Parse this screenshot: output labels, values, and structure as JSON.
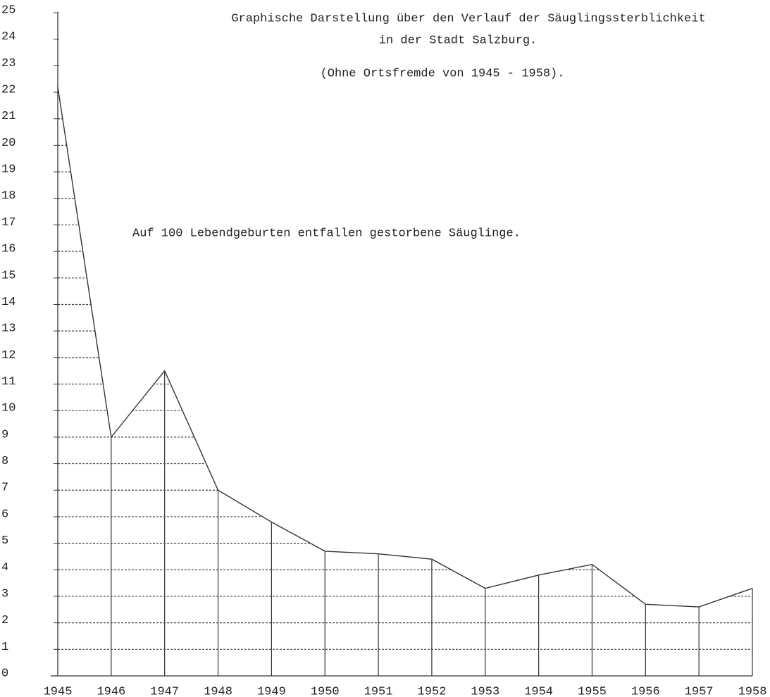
{
  "chart_data": {
    "type": "line",
    "title": "Graphische Darstellung über den Verlauf der Säuglingssterblichkeit",
    "subtitle": "in der Stadt Salzburg.",
    "note": "(Ohne Ortsfremde von 1945 - 1958).",
    "annotation": "Auf 100 Lebendgeburten entfallen gestorbene Säuglinge.",
    "categories": [
      "1945",
      "1946",
      "1947",
      "1948",
      "1949",
      "1950",
      "1951",
      "1952",
      "1953",
      "1954",
      "1955",
      "1956",
      "1957",
      "1958"
    ],
    "values": [
      22.2,
      9.0,
      11.5,
      7.0,
      5.8,
      4.7,
      4.6,
      4.4,
      3.3,
      3.8,
      4.2,
      2.7,
      2.6,
      3.3
    ],
    "color": "#333333",
    "ylim": [
      0,
      25
    ],
    "yticks": [
      0,
      1,
      2,
      3,
      4,
      5,
      6,
      7,
      8,
      9,
      10,
      11,
      12,
      13,
      14,
      15,
      16,
      17,
      18,
      19,
      20,
      21,
      22,
      23,
      24,
      25
    ],
    "grid": true
  }
}
